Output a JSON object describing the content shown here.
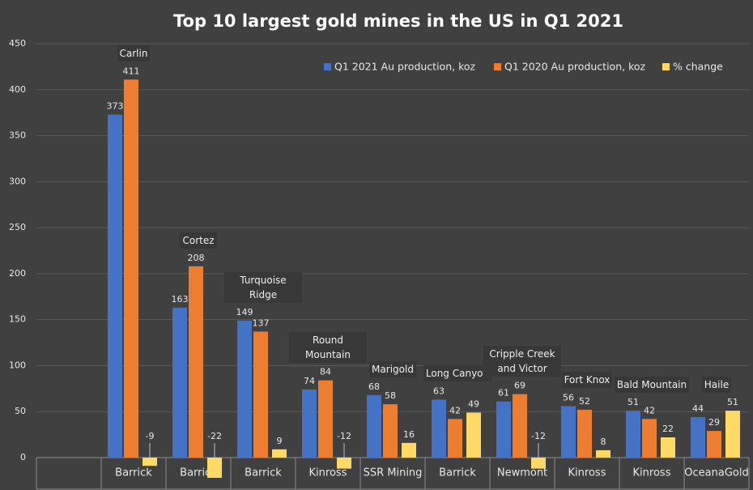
{
  "chart_data": {
    "type": "bar",
    "title": "Top 10 largest gold mines in the US in Q1 2021",
    "categories": [
      "Barrick",
      "Barrick",
      "Barrick",
      "Kinross",
      "SSR Mining",
      "Barrick",
      "Newmont",
      "Kinross",
      "Kinross",
      "OceanaGold"
    ],
    "mines": [
      "Carlin",
      "Cortez",
      "Turquoise Ridge",
      "Round Mountain",
      "Marigold",
      "Long Canyon",
      "Cripple Creek and Victor",
      "Fort Knox",
      "Bald Mountain",
      "Haile"
    ],
    "series": [
      {
        "name": "Q1 2021 Au production, koz",
        "color": "#4472c4",
        "values": [
          373,
          163,
          149,
          74,
          68,
          63,
          61,
          56,
          51,
          44
        ]
      },
      {
        "name": "Q1 2020 Au production, koz",
        "color": "#ed7d31",
        "values": [
          411,
          208,
          137,
          84,
          58,
          42,
          69,
          52,
          42,
          29
        ]
      },
      {
        "name": "% change",
        "color": "#ffd966",
        "values": [
          -9,
          -22,
          9,
          -12,
          16,
          49,
          -12,
          8,
          22,
          51
        ]
      }
    ],
    "ylim": [
      0,
      450
    ],
    "yticks": [
      0,
      50,
      100,
      150,
      200,
      250,
      300,
      350,
      400,
      450
    ],
    "grid": true,
    "legend": "top-right"
  }
}
